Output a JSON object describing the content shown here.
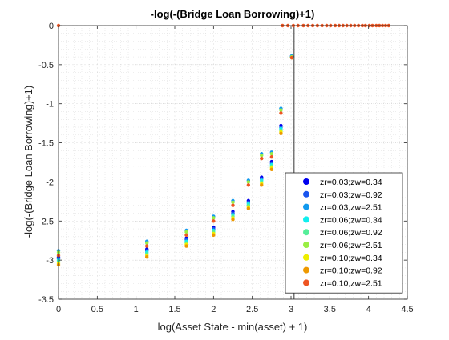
{
  "chart_data": {
    "type": "scatter",
    "title": "-log(-(Bridge Loan Borrowing)+1)",
    "xlabel": "log(Asset State - min(asset) + 1)",
    "ylabel": "-log(-(Bridge Loan Borrowing)+1)",
    "xlim": [
      0,
      4.5
    ],
    "ylim": [
      -3.5,
      0
    ],
    "xticks": [
      0,
      0.5,
      1,
      1.5,
      2,
      2.5,
      3,
      3.5,
      4,
      4.5
    ],
    "yticks": [
      -3.5,
      -3,
      -2.5,
      -2,
      -1.5,
      -1,
      -0.5,
      0
    ],
    "xtick_labels": [
      "0",
      "0.5",
      "1",
      "1.5",
      "2",
      "2.5",
      "3",
      "3.5",
      "4",
      "4.5"
    ],
    "ytick_labels": [
      "-3.5",
      "-3",
      "-2.5",
      "-2",
      "-1.5",
      "-1",
      "-0.5",
      "0"
    ],
    "grid": "major and minor, dotted",
    "legend_position": "bottom-right",
    "vertical_line_x": 3.04,
    "x": [
      0,
      1.14,
      1.65,
      2.0,
      2.25,
      2.45,
      2.62,
      2.75,
      2.87,
      3.01
    ],
    "series": [
      {
        "name": "zr=0.03;zw=0.34",
        "color": "#0000ee",
        "values": [
          -2.96,
          -2.86,
          -2.72,
          -2.58,
          -2.38,
          -2.24,
          -1.94,
          -1.74,
          -1.28,
          -0.39
        ]
      },
      {
        "name": "zr=0.03;zw=0.92",
        "color": "#1a55ee",
        "values": [
          -2.98,
          -2.88,
          -2.74,
          -2.6,
          -2.4,
          -2.26,
          -1.96,
          -1.76,
          -1.3,
          -0.39
        ]
      },
      {
        "name": "zr=0.03;zw=2.51",
        "color": "#1199ee",
        "values": [
          -2.88,
          -2.76,
          -2.62,
          -2.44,
          -2.24,
          -1.98,
          -1.64,
          -1.62,
          -1.06,
          -0.39
        ]
      },
      {
        "name": "zr=0.06;zw=0.34",
        "color": "#11eeee",
        "values": [
          -3.0,
          -2.9,
          -2.76,
          -2.62,
          -2.42,
          -2.28,
          -1.98,
          -1.78,
          -1.32,
          -0.4
        ]
      },
      {
        "name": "zr=0.06;zw=0.92",
        "color": "#55ee99",
        "values": [
          -3.02,
          -2.92,
          -2.78,
          -2.64,
          -2.44,
          -2.3,
          -2.0,
          -1.8,
          -1.34,
          -0.4
        ]
      },
      {
        "name": "zr=0.06;zw=2.51",
        "color": "#99ee44",
        "values": [
          -2.9,
          -2.78,
          -2.64,
          -2.46,
          -2.26,
          -2.0,
          -1.66,
          -1.64,
          -1.08,
          -0.4
        ]
      },
      {
        "name": "zr=0.10;zw=0.34",
        "color": "#eeee00",
        "values": [
          -3.04,
          -2.94,
          -2.8,
          -2.66,
          -2.46,
          -2.32,
          -2.02,
          -1.82,
          -1.36,
          -0.41
        ]
      },
      {
        "name": "zr=0.10;zw=0.92",
        "color": "#ee9900",
        "values": [
          -3.06,
          -2.96,
          -2.82,
          -2.68,
          -2.48,
          -2.34,
          -2.04,
          -1.84,
          -1.38,
          -0.41
        ]
      },
      {
        "name": "zr=0.10;zw=2.51",
        "color": "#ee5522",
        "values": [
          -2.94,
          -2.82,
          -2.68,
          -2.5,
          -2.3,
          -2.04,
          -1.7,
          -1.68,
          -1.12,
          -0.41
        ]
      }
    ],
    "zero_row": {
      "color": "#ee5522",
      "x": [
        0,
        2.89,
        2.96,
        3.03,
        3.09,
        3.16,
        3.22,
        3.28,
        3.34,
        3.4,
        3.46,
        3.51,
        3.57,
        3.62,
        3.67,
        3.72,
        3.77,
        3.82,
        3.87,
        3.92,
        3.96,
        4.01,
        4.05,
        4.1,
        4.14,
        4.18,
        4.22,
        4.26
      ],
      "y": 0
    }
  }
}
